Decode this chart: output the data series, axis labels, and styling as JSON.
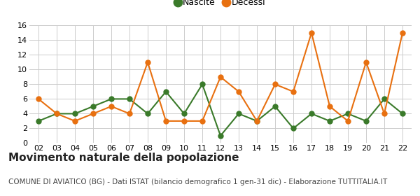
{
  "years": [
    2,
    3,
    4,
    5,
    6,
    7,
    8,
    9,
    10,
    11,
    12,
    13,
    14,
    15,
    16,
    17,
    18,
    19,
    20,
    21,
    22
  ],
  "nascite": [
    3,
    4,
    4,
    5,
    6,
    6,
    4,
    7,
    4,
    8,
    1,
    4,
    3,
    5,
    2,
    4,
    3,
    4,
    3,
    6,
    4
  ],
  "decessi": [
    6,
    4,
    3,
    4,
    5,
    4,
    11,
    3,
    3,
    3,
    9,
    7,
    3,
    8,
    7,
    15,
    5,
    3,
    11,
    4,
    15
  ],
  "nascite_color": "#3a7a2a",
  "decessi_color": "#e87010",
  "background_color": "#ffffff",
  "grid_color": "#cccccc",
  "ylim": [
    0,
    16
  ],
  "yticks": [
    0,
    2,
    4,
    6,
    8,
    10,
    12,
    14,
    16
  ],
  "title": "Movimento naturale della popolazione",
  "subtitle": "COMUNE DI AVIATICO (BG) - Dati ISTAT (bilancio demografico 1 gen-31 dic) - Elaborazione TUTTITALIA.IT",
  "legend_nascite": "Nascite",
  "legend_decessi": "Decessi",
  "title_fontsize": 11,
  "subtitle_fontsize": 7.5,
  "legend_fontsize": 9,
  "tick_fontsize": 8,
  "marker_size": 5,
  "line_width": 1.5
}
